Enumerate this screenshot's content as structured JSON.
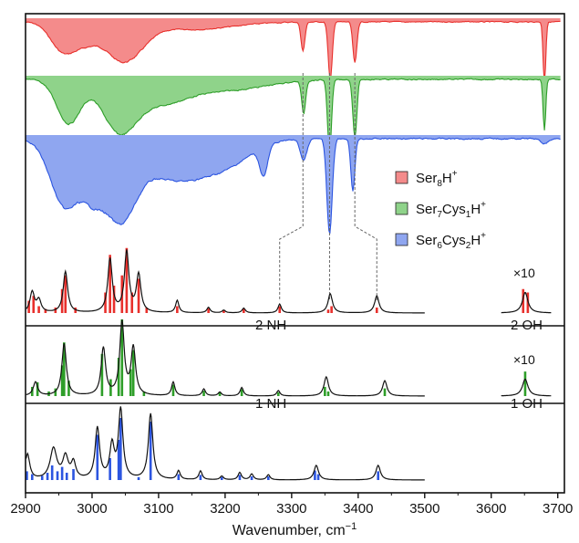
{
  "chart_data": {
    "type": "line",
    "xlabel": "Wavenumber, cm",
    "xlabel_superscript": "−1",
    "xlim": [
      2900,
      3710
    ],
    "x_ticks": [
      2900,
      3000,
      3100,
      3200,
      3300,
      3400,
      3500,
      3600,
      3700
    ],
    "colors": {
      "red_fill": "#f48b8b",
      "red_line": "#e8302c",
      "green_fill": "#8fd38a",
      "green_line": "#2e9e29",
      "blue_fill": "#8fa6f0",
      "blue_line": "#2c55e0",
      "dash": "#666666"
    },
    "legend": {
      "placement": "middle-right",
      "entries": [
        {
          "base": "Ser",
          "sub1": "8",
          "mid": "H",
          "sub2": "",
          "sup": "+",
          "color": "#f48b8b"
        },
        {
          "base": "Ser",
          "sub1": "7",
          "mid": "Cys",
          "sub2": "1",
          "tail": "H",
          "sup": "+",
          "color": "#8fd38a"
        },
        {
          "base": "Ser",
          "sub1": "6",
          "mid": "Cys",
          "sub2": "2",
          "tail": "H",
          "sup": "+",
          "color": "#8fa6f0"
        }
      ]
    },
    "experimental": [
      {
        "name": "Ser8H+",
        "color": "#e8302c",
        "fill": "#f48b8b",
        "bands": [
          {
            "center": 2955,
            "width": 18,
            "depth": 0.42
          },
          {
            "center": 2990,
            "width": 20,
            "depth": 0.3
          },
          {
            "center": 3040,
            "width": 22,
            "depth": 0.48
          },
          {
            "center": 3070,
            "width": 22,
            "depth": 0.25
          },
          {
            "center": 3150,
            "width": 60,
            "depth": 0.12
          },
          {
            "center": 3317,
            "width": 3,
            "depth": 0.45
          },
          {
            "center": 3358,
            "width": 3,
            "depth": 0.92
          },
          {
            "center": 3395,
            "width": 3,
            "depth": 0.65
          },
          {
            "center": 3680,
            "width": 2,
            "depth": 0.95
          }
        ]
      },
      {
        "name": "Ser7Cys1H+",
        "color": "#2e9e29",
        "fill": "#8fd38a",
        "bands": [
          {
            "center": 2965,
            "width": 18,
            "depth": 0.6
          },
          {
            "center": 3040,
            "width": 25,
            "depth": 0.65
          },
          {
            "center": 3100,
            "width": 40,
            "depth": 0.3
          },
          {
            "center": 3200,
            "width": 60,
            "depth": 0.15
          },
          {
            "center": 3318,
            "width": 3,
            "depth": 0.45
          },
          {
            "center": 3357,
            "width": 3,
            "depth": 1.0
          },
          {
            "center": 3395,
            "width": 3,
            "depth": 0.8
          },
          {
            "center": 3680,
            "width": 2,
            "depth": 0.7
          }
        ]
      },
      {
        "name": "Ser6Cys2H+",
        "color": "#2c55e0",
        "fill": "#8fa6f0",
        "bands": [
          {
            "center": 2960,
            "width": 22,
            "depth": 0.72
          },
          {
            "center": 3000,
            "width": 15,
            "depth": 0.35
          },
          {
            "center": 3040,
            "width": 25,
            "depth": 0.8
          },
          {
            "center": 3120,
            "width": 45,
            "depth": 0.4
          },
          {
            "center": 3200,
            "width": 40,
            "depth": 0.25
          },
          {
            "center": 3258,
            "width": 6,
            "depth": 0.3
          },
          {
            "center": 3318,
            "width": 5,
            "depth": 0.22
          },
          {
            "center": 3357,
            "width": 4,
            "depth": 1.0
          },
          {
            "center": 3392,
            "width": 3,
            "depth": 0.55
          },
          {
            "center": 3680,
            "width": 6,
            "depth": 0.05
          }
        ]
      }
    ],
    "computed": [
      {
        "name": "Ser8H+",
        "color": "#e8302c",
        "section_label": "2 NH",
        "oh_label": "2 OH",
        "scale_label": "×10",
        "sticks": [
          {
            "x": 2905,
            "h": 0.18
          },
          {
            "x": 2912,
            "h": 0.25
          },
          {
            "x": 2920,
            "h": 0.1
          },
          {
            "x": 2930,
            "h": 0.06
          },
          {
            "x": 2945,
            "h": 0.08
          },
          {
            "x": 2955,
            "h": 0.35
          },
          {
            "x": 2960,
            "h": 0.55
          },
          {
            "x": 2975,
            "h": 0.08
          },
          {
            "x": 3020,
            "h": 0.3
          },
          {
            "x": 3027,
            "h": 0.85
          },
          {
            "x": 3033,
            "h": 0.4
          },
          {
            "x": 3045,
            "h": 0.55
          },
          {
            "x": 3052,
            "h": 0.95
          },
          {
            "x": 3060,
            "h": 0.3
          },
          {
            "x": 3070,
            "h": 0.5
          },
          {
            "x": 3082,
            "h": 0.08
          },
          {
            "x": 3128,
            "h": 0.1
          },
          {
            "x": 3175,
            "h": 0.07
          },
          {
            "x": 3198,
            "h": 0.04
          },
          {
            "x": 3228,
            "h": 0.06
          },
          {
            "x": 3282,
            "h": 0.1
          },
          {
            "x": 3355,
            "h": 0.05
          },
          {
            "x": 3360,
            "h": 0.1
          },
          {
            "x": 3428,
            "h": 0.08
          }
        ],
        "peaks": [
          {
            "x": 2910,
            "h": 0.3,
            "w": 4
          },
          {
            "x": 2920,
            "h": 0.18,
            "w": 4
          },
          {
            "x": 2960,
            "h": 0.6,
            "w": 4
          },
          {
            "x": 3027,
            "h": 0.78,
            "w": 4
          },
          {
            "x": 3052,
            "h": 0.88,
            "w": 4
          },
          {
            "x": 3070,
            "h": 0.55,
            "w": 4
          },
          {
            "x": 3128,
            "h": 0.18,
            "w": 3
          },
          {
            "x": 3175,
            "h": 0.08,
            "w": 3
          },
          {
            "x": 3198,
            "h": 0.04,
            "w": 3
          },
          {
            "x": 3228,
            "h": 0.07,
            "w": 3
          },
          {
            "x": 3282,
            "h": 0.13,
            "w": 3
          },
          {
            "x": 3358,
            "h": 0.28,
            "w": 4
          },
          {
            "x": 3428,
            "h": 0.25,
            "w": 4
          }
        ],
        "oh_sticks": [
          {
            "x": 3648,
            "h": 0.35
          },
          {
            "x": 3655,
            "h": 0.3
          }
        ],
        "oh_peaks": [
          {
            "x": 3651,
            "h": 0.3,
            "w": 5
          }
        ]
      },
      {
        "name": "Ser7Cys1H+",
        "color": "#2e9e29",
        "section_label": "1 NH",
        "oh_label": "1 OH",
        "scale_label": "×10",
        "sticks": [
          {
            "x": 2910,
            "h": 0.12
          },
          {
            "x": 2918,
            "h": 0.18
          },
          {
            "x": 2935,
            "h": 0.06
          },
          {
            "x": 2945,
            "h": 0.1
          },
          {
            "x": 2955,
            "h": 0.4
          },
          {
            "x": 2958,
            "h": 0.7
          },
          {
            "x": 2965,
            "h": 0.2
          },
          {
            "x": 3015,
            "h": 0.55
          },
          {
            "x": 3028,
            "h": 0.22
          },
          {
            "x": 3040,
            "h": 0.5
          },
          {
            "x": 3045,
            "h": 1.0
          },
          {
            "x": 3058,
            "h": 0.35
          },
          {
            "x": 3062,
            "h": 0.6
          },
          {
            "x": 3078,
            "h": 0.06
          },
          {
            "x": 3122,
            "h": 0.15
          },
          {
            "x": 3168,
            "h": 0.07
          },
          {
            "x": 3192,
            "h": 0.05
          },
          {
            "x": 3225,
            "h": 0.09
          },
          {
            "x": 3280,
            "h": 0.05
          },
          {
            "x": 3350,
            "h": 0.12
          },
          {
            "x": 3355,
            "h": 0.06
          },
          {
            "x": 3440,
            "h": 0.1
          }
        ],
        "peaks": [
          {
            "x": 2915,
            "h": 0.18,
            "w": 4
          },
          {
            "x": 2958,
            "h": 0.68,
            "w": 4
          },
          {
            "x": 3017,
            "h": 0.62,
            "w": 4
          },
          {
            "x": 3045,
            "h": 0.95,
            "w": 4
          },
          {
            "x": 3062,
            "h": 0.62,
            "w": 4
          },
          {
            "x": 3122,
            "h": 0.18,
            "w": 3
          },
          {
            "x": 3168,
            "h": 0.09,
            "w": 3
          },
          {
            "x": 3192,
            "h": 0.05,
            "w": 3
          },
          {
            "x": 3225,
            "h": 0.11,
            "w": 3
          },
          {
            "x": 3280,
            "h": 0.07,
            "w": 3
          },
          {
            "x": 3352,
            "h": 0.25,
            "w": 4
          },
          {
            "x": 3440,
            "h": 0.2,
            "w": 4
          }
        ],
        "oh_sticks": [
          {
            "x": 3651,
            "h": 0.32
          }
        ],
        "oh_peaks": [
          {
            "x": 3651,
            "h": 0.22,
            "w": 5
          }
        ]
      },
      {
        "name": "Ser6Cys2H+",
        "color": "#2c55e0",
        "sticks": [
          {
            "x": 2902,
            "h": 0.12
          },
          {
            "x": 2910,
            "h": 0.08
          },
          {
            "x": 2925,
            "h": 0.06
          },
          {
            "x": 2933,
            "h": 0.1
          },
          {
            "x": 2940,
            "h": 0.2
          },
          {
            "x": 2948,
            "h": 0.12
          },
          {
            "x": 2955,
            "h": 0.18
          },
          {
            "x": 2962,
            "h": 0.1
          },
          {
            "x": 2972,
            "h": 0.15
          },
          {
            "x": 3008,
            "h": 0.62
          },
          {
            "x": 3027,
            "h": 0.3
          },
          {
            "x": 3040,
            "h": 0.55
          },
          {
            "x": 3043,
            "h": 0.85
          },
          {
            "x": 3070,
            "h": 0.04
          },
          {
            "x": 3088,
            "h": 0.8
          },
          {
            "x": 3130,
            "h": 0.08
          },
          {
            "x": 3163,
            "h": 0.07
          },
          {
            "x": 3195,
            "h": 0.04
          },
          {
            "x": 3222,
            "h": 0.07
          },
          {
            "x": 3240,
            "h": 0.05
          },
          {
            "x": 3265,
            "h": 0.05
          },
          {
            "x": 3335,
            "h": 0.13
          },
          {
            "x": 3340,
            "h": 0.08
          },
          {
            "x": 3430,
            "h": 0.12
          }
        ],
        "peaks": [
          {
            "x": 2903,
            "h": 0.35,
            "w": 4
          },
          {
            "x": 2942,
            "h": 0.42,
            "w": 6
          },
          {
            "x": 2960,
            "h": 0.3,
            "w": 5
          },
          {
            "x": 2972,
            "h": 0.22,
            "w": 4
          },
          {
            "x": 3008,
            "h": 0.7,
            "w": 4
          },
          {
            "x": 3030,
            "h": 0.45,
            "w": 4
          },
          {
            "x": 3043,
            "h": 0.95,
            "w": 4
          },
          {
            "x": 3088,
            "h": 0.9,
            "w": 4
          },
          {
            "x": 3130,
            "h": 0.12,
            "w": 3
          },
          {
            "x": 3163,
            "h": 0.12,
            "w": 3
          },
          {
            "x": 3195,
            "h": 0.05,
            "w": 3
          },
          {
            "x": 3222,
            "h": 0.1,
            "w": 3
          },
          {
            "x": 3240,
            "h": 0.08,
            "w": 3
          },
          {
            "x": 3265,
            "h": 0.07,
            "w": 3
          },
          {
            "x": 3337,
            "h": 0.2,
            "w": 4
          },
          {
            "x": 3430,
            "h": 0.2,
            "w": 4
          }
        ],
        "oh_sticks": [],
        "oh_peaks": []
      }
    ],
    "correlation_lines": [
      {
        "exp": 3317,
        "calc": 3282
      },
      {
        "exp": 3357,
        "calc": 3357
      },
      {
        "exp": 3395,
        "calc": 3428
      }
    ]
  }
}
